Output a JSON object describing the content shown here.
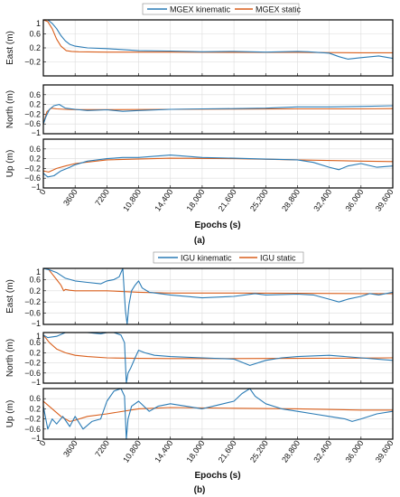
{
  "figure": {
    "subfigures": [
      {
        "caption": "(a)",
        "xlabel": "Epochs (s)",
        "legend": [
          "MGEX kinematic",
          "MGEX static"
        ],
        "panels": [
          {
            "ylabel": "East (m)"
          },
          {
            "ylabel": "North (m)"
          },
          {
            "ylabel": "Up (m)"
          }
        ]
      },
      {
        "caption": "(b)",
        "xlabel": "Epochs (s)",
        "legend": [
          "IGU kinematic",
          "IGU static"
        ],
        "panels": [
          {
            "ylabel": "East (m)"
          },
          {
            "ylabel": "North (m)"
          },
          {
            "ylabel": "Up (m)"
          }
        ]
      }
    ]
  },
  "chart_data": [
    {
      "type": "line",
      "subplot": "a-east",
      "ylabel": "East (m)",
      "xlabel": "Epochs (s)",
      "xlim": [
        0,
        39600
      ],
      "ylim": [
        -0.6,
        1
      ],
      "x_ticks": [
        "0",
        "3600",
        "7200",
        "10,800",
        "14,400",
        "18,000",
        "21,600",
        "25,200",
        "28,800",
        "32,400",
        "36,000",
        "39,600"
      ],
      "y_ticks": [
        "1",
        "0.6",
        "0.2",
        "−0.2"
      ],
      "grid": true,
      "legend_position": "top-center",
      "series": [
        {
          "name": "MGEX kinematic",
          "color": "#2a7bb5",
          "x": [
            0,
            500,
            1000,
            1500,
            2000,
            2500,
            3000,
            3600,
            5000,
            7200,
            10800,
            14400,
            18000,
            21600,
            25200,
            28800,
            30000,
            32400,
            33500,
            34500,
            36000,
            38000,
            39600
          ],
          "y": [
            1.0,
            1.0,
            0.9,
            0.75,
            0.55,
            0.4,
            0.3,
            0.25,
            0.2,
            0.18,
            0.12,
            0.11,
            0.09,
            0.1,
            0.08,
            0.1,
            0.09,
            0.05,
            -0.05,
            -0.12,
            -0.08,
            -0.03,
            -0.1
          ]
        },
        {
          "name": "MGEX static",
          "color": "#d95f1c",
          "x": [
            0,
            500,
            1000,
            1500,
            2000,
            2600,
            3200,
            4000,
            7200,
            14400,
            21600,
            28800,
            36000,
            39600
          ],
          "y": [
            1.0,
            0.95,
            0.75,
            0.45,
            0.25,
            0.12,
            0.1,
            0.09,
            0.08,
            0.08,
            0.07,
            0.07,
            0.06,
            0.06
          ]
        }
      ]
    },
    {
      "type": "line",
      "subplot": "a-north",
      "ylabel": "North (m)",
      "xlabel": "Epochs (s)",
      "xlim": [
        0,
        39600
      ],
      "ylim": [
        -1,
        1
      ],
      "x_ticks": [
        "0",
        "3600",
        "7200",
        "10,800",
        "14,400",
        "18,000",
        "21,600",
        "25,200",
        "28,800",
        "32,400",
        "36,000",
        "39,600"
      ],
      "y_ticks": [
        "0.6",
        "0.2",
        "−0.2",
        "−0.6",
        "−1"
      ],
      "grid": true,
      "series": [
        {
          "name": "MGEX kinematic",
          "color": "#2a7bb5",
          "x": [
            0,
            300,
            700,
            1200,
            1800,
            2500,
            3600,
            5000,
            7200,
            9000,
            10800,
            14400,
            18000,
            21600,
            25200,
            28800,
            32400,
            36000,
            39600
          ],
          "y": [
            -0.6,
            -0.3,
            0.0,
            0.15,
            0.2,
            0.05,
            0.0,
            -0.05,
            -0.02,
            -0.08,
            -0.05,
            0.0,
            0.02,
            0.03,
            0.05,
            0.1,
            0.1,
            0.12,
            0.15
          ]
        },
        {
          "name": "MGEX static",
          "color": "#d95f1c",
          "x": [
            0,
            400,
            900,
            1500,
            2500,
            3600,
            7200,
            14400,
            21600,
            28800,
            36000,
            39600
          ],
          "y": [
            -0.6,
            -0.1,
            0.05,
            0.02,
            0.0,
            -0.01,
            -0.01,
            0.0,
            0.01,
            0.02,
            0.02,
            0.03
          ]
        }
      ]
    },
    {
      "type": "line",
      "subplot": "a-up",
      "ylabel": "Up (m)",
      "xlabel": "Epochs (s)",
      "xlim": [
        0,
        39600
      ],
      "ylim": [
        -1,
        1
      ],
      "x_ticks": [
        "0",
        "3600",
        "7200",
        "10,800",
        "14,400",
        "18,000",
        "21,600",
        "25,200",
        "28,800",
        "32,400",
        "36,000",
        "39,600"
      ],
      "y_ticks": [
        "0.6",
        "0.2",
        "−0.2",
        "−0.6",
        "−1"
      ],
      "grid": true,
      "series": [
        {
          "name": "MGEX kinematic",
          "color": "#2a7bb5",
          "x": [
            0,
            500,
            1200,
            2000,
            3000,
            3600,
            5000,
            7200,
            9000,
            10800,
            12600,
            14400,
            16200,
            18000,
            21600,
            25200,
            28800,
            30600,
            32400,
            33500,
            34500,
            36000,
            37800,
            39600
          ],
          "y": [
            -0.4,
            -0.55,
            -0.5,
            -0.3,
            -0.15,
            -0.05,
            0.1,
            0.2,
            0.25,
            0.25,
            0.3,
            0.35,
            0.3,
            0.25,
            0.22,
            0.18,
            0.15,
            0.05,
            -0.15,
            -0.25,
            -0.1,
            0.0,
            -0.15,
            -0.1
          ]
        },
        {
          "name": "MGEX static",
          "color": "#d95f1c",
          "x": [
            0,
            600,
            1500,
            2500,
            3600,
            7200,
            14400,
            21600,
            28800,
            36000,
            39600
          ],
          "y": [
            -0.3,
            -0.35,
            -0.2,
            -0.1,
            0.0,
            0.15,
            0.22,
            0.2,
            0.15,
            0.1,
            0.08
          ]
        }
      ]
    },
    {
      "type": "line",
      "subplot": "b-east",
      "ylabel": "East (m)",
      "xlabel": "Epochs (s)",
      "xlim": [
        0,
        39600
      ],
      "ylim": [
        -1,
        1
      ],
      "x_ticks": [
        "0",
        "3600",
        "7200",
        "10,800",
        "14,400",
        "18,000",
        "21,600",
        "25,200",
        "28,800",
        "32,400",
        "36,000",
        "39,600"
      ],
      "y_ticks": [
        "1",
        "0.6",
        "0.2",
        "−0.2",
        "−0.6",
        "−1"
      ],
      "grid": true,
      "legend_position": "top-center",
      "series": [
        {
          "name": "IGU kinematic",
          "color": "#2a7bb5",
          "x": [
            0,
            700,
            1500,
            2500,
            3600,
            5000,
            6500,
            7200,
            8000,
            8600,
            9000,
            9300,
            9500,
            9700,
            10000,
            10400,
            10800,
            11200,
            12000,
            14400,
            18000,
            21600,
            24000,
            25200,
            28800,
            30600,
            32400,
            33500,
            34500,
            36000,
            37000,
            38000,
            39600
          ],
          "y": [
            1.0,
            0.95,
            0.85,
            0.65,
            0.55,
            0.5,
            0.45,
            0.55,
            0.6,
            0.7,
            1.0,
            -0.5,
            -1.0,
            -0.3,
            0.2,
            0.4,
            0.55,
            0.3,
            0.15,
            0.05,
            -0.05,
            0.0,
            0.1,
            0.05,
            0.08,
            0.05,
            -0.1,
            -0.2,
            -0.1,
            0.0,
            0.1,
            0.05,
            0.15
          ]
        },
        {
          "name": "IGU static",
          "color": "#d95f1c",
          "x": [
            0,
            500,
            1000,
            1500,
            2000,
            2300,
            2500,
            3000,
            3600,
            5000,
            7200,
            10800,
            14400,
            21600,
            28800,
            36000,
            39600
          ],
          "y": [
            1.0,
            1.0,
            0.8,
            0.6,
            0.4,
            0.2,
            0.25,
            0.22,
            0.2,
            0.2,
            0.2,
            0.15,
            0.12,
            0.12,
            0.11,
            0.1,
            0.1
          ]
        }
      ]
    },
    {
      "type": "line",
      "subplot": "b-north",
      "ylabel": "North (m)",
      "xlabel": "Epochs (s)",
      "xlim": [
        0,
        39600
      ],
      "ylim": [
        -1,
        1
      ],
      "x_ticks": [
        "0",
        "3600",
        "7200",
        "10,800",
        "14,400",
        "18,000",
        "21,600",
        "25,200",
        "28,800",
        "32,400",
        "36,000",
        "39,600"
      ],
      "y_ticks": [
        "1",
        "0.6",
        "0.2",
        "−0.2",
        "−0.6",
        "−1"
      ],
      "grid": true,
      "series": [
        {
          "name": "IGU kinematic",
          "color": "#2a7bb5",
          "x": [
            0,
            500,
            1500,
            2500,
            3600,
            5000,
            6500,
            7200,
            8000,
            8800,
            9200,
            9400,
            9600,
            9900,
            10400,
            10800,
            11500,
            12600,
            14400,
            18000,
            21600,
            23400,
            25200,
            27000,
            28800,
            32400,
            36000,
            39600
          ],
          "y": [
            0.9,
            0.8,
            0.85,
            1.0,
            1.0,
            1.0,
            0.95,
            1.0,
            1.0,
            0.9,
            0.6,
            -1.0,
            -0.6,
            -0.4,
            0.0,
            0.3,
            0.2,
            0.1,
            0.05,
            0.0,
            -0.05,
            -0.3,
            -0.1,
            0.0,
            0.05,
            0.1,
            0.0,
            -0.1
          ]
        },
        {
          "name": "IGU static",
          "color": "#d95f1c",
          "x": [
            0,
            700,
            1500,
            2500,
            3600,
            5000,
            7200,
            10800,
            14400,
            21600,
            28800,
            36000,
            39600
          ],
          "y": [
            0.9,
            0.6,
            0.35,
            0.2,
            0.1,
            0.05,
            0.0,
            -0.02,
            -0.03,
            -0.03,
            -0.02,
            -0.01,
            0.0
          ]
        }
      ]
    },
    {
      "type": "line",
      "subplot": "b-up",
      "ylabel": "Up (m)",
      "xlabel": "Epochs (s)",
      "xlim": [
        0,
        39600
      ],
      "ylim": [
        -1,
        1
      ],
      "x_ticks": [
        "0",
        "3600",
        "7200",
        "10,800",
        "14,400",
        "18,000",
        "21,600",
        "25,200",
        "28,800",
        "32,400",
        "36,000",
        "39,600"
      ],
      "y_ticks": [
        "0.6",
        "0.2",
        "−0.2",
        "−0.6",
        "−1"
      ],
      "grid": true,
      "series": [
        {
          "name": "IGU kinematic",
          "color": "#2a7bb5",
          "x": [
            0,
            500,
            1000,
            1500,
            2200,
            3000,
            3600,
            4500,
            5500,
            6500,
            7200,
            8000,
            8800,
            9200,
            9400,
            9600,
            10000,
            10800,
            12000,
            13000,
            14400,
            16200,
            18000,
            19800,
            21600,
            22500,
            23400,
            24000,
            25200,
            27000,
            28800,
            30600,
            32400,
            34200,
            35000,
            36000,
            37800,
            39600
          ],
          "y": [
            0.3,
            -0.6,
            -0.2,
            -0.4,
            -0.1,
            -0.5,
            -0.1,
            -0.6,
            -0.3,
            -0.2,
            0.5,
            0.9,
            1.0,
            0.7,
            -1.0,
            -0.2,
            0.3,
            0.5,
            0.1,
            0.3,
            0.4,
            0.3,
            0.2,
            0.35,
            0.5,
            0.8,
            1.0,
            0.7,
            0.4,
            0.2,
            0.1,
            0.0,
            -0.1,
            -0.2,
            -0.3,
            -0.2,
            0.0,
            0.1
          ]
        },
        {
          "name": "IGU static",
          "color": "#d95f1c",
          "x": [
            0,
            1000,
            2000,
            3000,
            3600,
            5000,
            7200,
            10800,
            14400,
            21600,
            28800,
            36000,
            39600
          ],
          "y": [
            0.5,
            0.2,
            -0.1,
            -0.3,
            -0.25,
            -0.1,
            0.0,
            0.2,
            0.25,
            0.22,
            0.2,
            0.15,
            0.15
          ]
        }
      ]
    }
  ]
}
